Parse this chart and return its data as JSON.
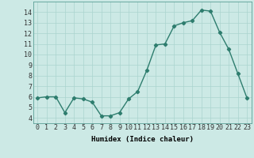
{
  "x": [
    0,
    1,
    2,
    3,
    4,
    5,
    6,
    7,
    8,
    9,
    10,
    11,
    12,
    13,
    14,
    15,
    16,
    17,
    18,
    19,
    20,
    21,
    22,
    23
  ],
  "y": [
    5.9,
    6.0,
    6.0,
    4.5,
    5.9,
    5.8,
    5.5,
    4.2,
    4.2,
    4.5,
    5.8,
    6.5,
    8.5,
    10.9,
    11.0,
    12.7,
    13.0,
    13.2,
    14.2,
    14.1,
    12.1,
    10.5,
    8.2,
    5.9
  ],
  "xlabel": "Humidex (Indice chaleur)",
  "ylim": [
    3.5,
    15.0
  ],
  "xlim": [
    -0.5,
    23.5
  ],
  "yticks": [
    4,
    5,
    6,
    7,
    8,
    9,
    10,
    11,
    12,
    13,
    14
  ],
  "xticks": [
    0,
    1,
    2,
    3,
    4,
    5,
    6,
    7,
    8,
    9,
    10,
    11,
    12,
    13,
    14,
    15,
    16,
    17,
    18,
    19,
    20,
    21,
    22,
    23
  ],
  "xtick_labels": [
    "0",
    "1",
    "2",
    "3",
    "4",
    "5",
    "6",
    "7",
    "8",
    "9",
    "10",
    "11",
    "12",
    "13",
    "14",
    "15",
    "16",
    "17",
    "18",
    "19",
    "20",
    "21",
    "22",
    "23"
  ],
  "line_color": "#2e7d6e",
  "marker": "D",
  "marker_size": 2.2,
  "line_width": 1.0,
  "bg_color": "#cce9e5",
  "grid_color": "#aad4cf",
  "axis_label_fontsize": 6.5,
  "tick_fontsize": 6.0
}
